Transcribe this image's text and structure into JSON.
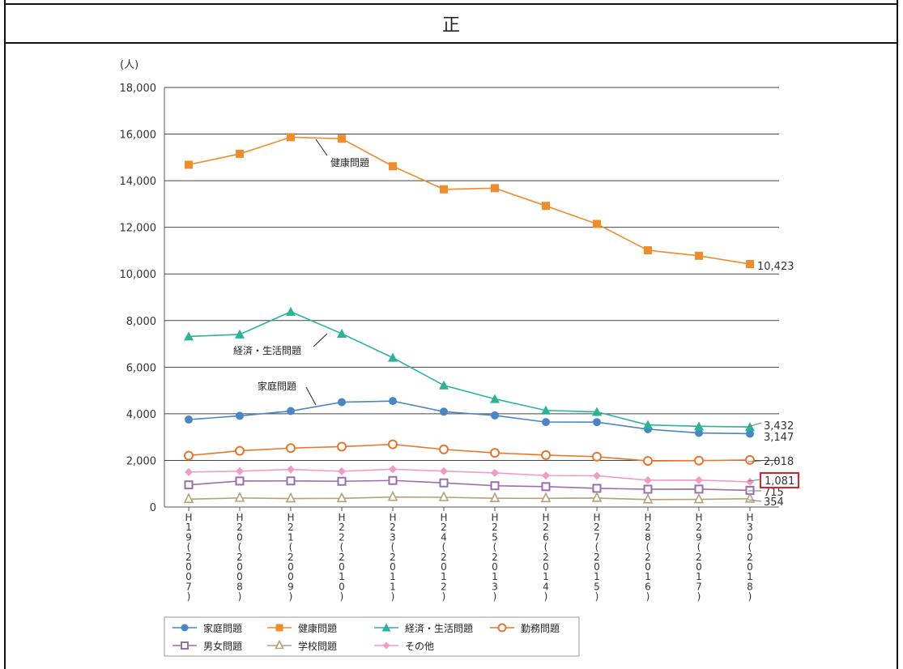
{
  "header": {
    "label": "正"
  },
  "chart_data": {
    "type": "line",
    "unit_label": "(人)",
    "y_ticks": [
      "0",
      "2,000",
      "4,000",
      "6,000",
      "8,000",
      "10,000",
      "12,000",
      "14,000",
      "16,000",
      "18,000"
    ],
    "ylim": [
      0,
      18000
    ],
    "x_labels": [
      [
        "H",
        "1",
        "9",
        "(",
        "2",
        "0",
        "0",
        "7",
        ")"
      ],
      [
        "H",
        "2",
        "0",
        "(",
        "2",
        "0",
        "0",
        "8",
        ")"
      ],
      [
        "H",
        "2",
        "1",
        "(",
        "2",
        "0",
        "0",
        "9",
        ")"
      ],
      [
        "H",
        "2",
        "2",
        "(",
        "2",
        "0",
        "1",
        "0",
        ")"
      ],
      [
        "H",
        "2",
        "3",
        "(",
        "2",
        "0",
        "1",
        "1",
        ")"
      ],
      [
        "H",
        "2",
        "4",
        "(",
        "2",
        "0",
        "1",
        "2",
        ")"
      ],
      [
        "H",
        "2",
        "5",
        "(",
        "2",
        "0",
        "1",
        "3",
        ")"
      ],
      [
        "H",
        "2",
        "6",
        "(",
        "2",
        "0",
        "1",
        "4",
        ")"
      ],
      [
        "H",
        "2",
        "7",
        "(",
        "2",
        "0",
        "1",
        "5",
        ")"
      ],
      [
        "H",
        "2",
        "8",
        "(",
        "2",
        "0",
        "1",
        "6",
        ")"
      ],
      [
        "H",
        "2",
        "9",
        "(",
        "2",
        "0",
        "1",
        "7",
        ")"
      ],
      [
        "H",
        "3",
        "0",
        "(",
        "2",
        "0",
        "1",
        "8",
        ")"
      ]
    ],
    "series": [
      {
        "name": "家庭問題",
        "color": "#4a86c5",
        "marker": "circle",
        "values": [
          3751,
          3912,
          4117,
          4497,
          4547,
          4090,
          3930,
          3644,
          3641,
          3337,
          3179,
          3147
        ]
      },
      {
        "name": "健康問題",
        "color": "#ef8c2c",
        "marker": "square",
        "values": [
          14684,
          15153,
          15867,
          15802,
          14621,
          13629,
          13680,
          12920,
          12145,
          11014,
          10778,
          10423
        ]
      },
      {
        "name": "経済・生活問題",
        "color": "#2bb39a",
        "marker": "triangle",
        "values": [
          7318,
          7404,
          8377,
          7438,
          6406,
          5219,
          4636,
          4144,
          4082,
          3522,
          3464,
          3432
        ]
      },
      {
        "name": "勤務問題",
        "color": "#e8762b",
        "marker": "open-circle",
        "values": [
          2207,
          2412,
          2528,
          2590,
          2689,
          2472,
          2323,
          2227,
          2159,
          1978,
          1991,
          2018
        ]
      },
      {
        "name": "男女問題",
        "color": "#9b6cb0",
        "marker": "open-square",
        "values": [
          949,
          1115,
          1121,
          1103,
          1138,
          1035,
          912,
          875,
          801,
          764,
          768,
          715
        ]
      },
      {
        "name": "学校問題",
        "color": "#b4a274",
        "marker": "open-triangle",
        "values": [
          338,
          387,
          364,
          371,
          429,
          417,
          375,
          372,
          384,
          319,
          329,
          354
        ]
      },
      {
        "name": "その他",
        "color": "#f29bc4",
        "marker": "diamond",
        "values": [
          1500,
          1538,
          1613,
          1533,
          1621,
          1539,
          1462,
          1351,
          1342,
          1148,
          1153,
          1081
        ]
      }
    ],
    "end_labels": [
      "10,423",
      "3,432",
      "3,147",
      "2,018",
      "1,081",
      "715",
      "354"
    ],
    "annotations": {
      "health": "健康問題",
      "economy": "経済・生活問題",
      "family": "家庭問題"
    },
    "highlight_color": "#d9232a",
    "grid": "horizontal",
    "legend_position": "bottom-left"
  }
}
